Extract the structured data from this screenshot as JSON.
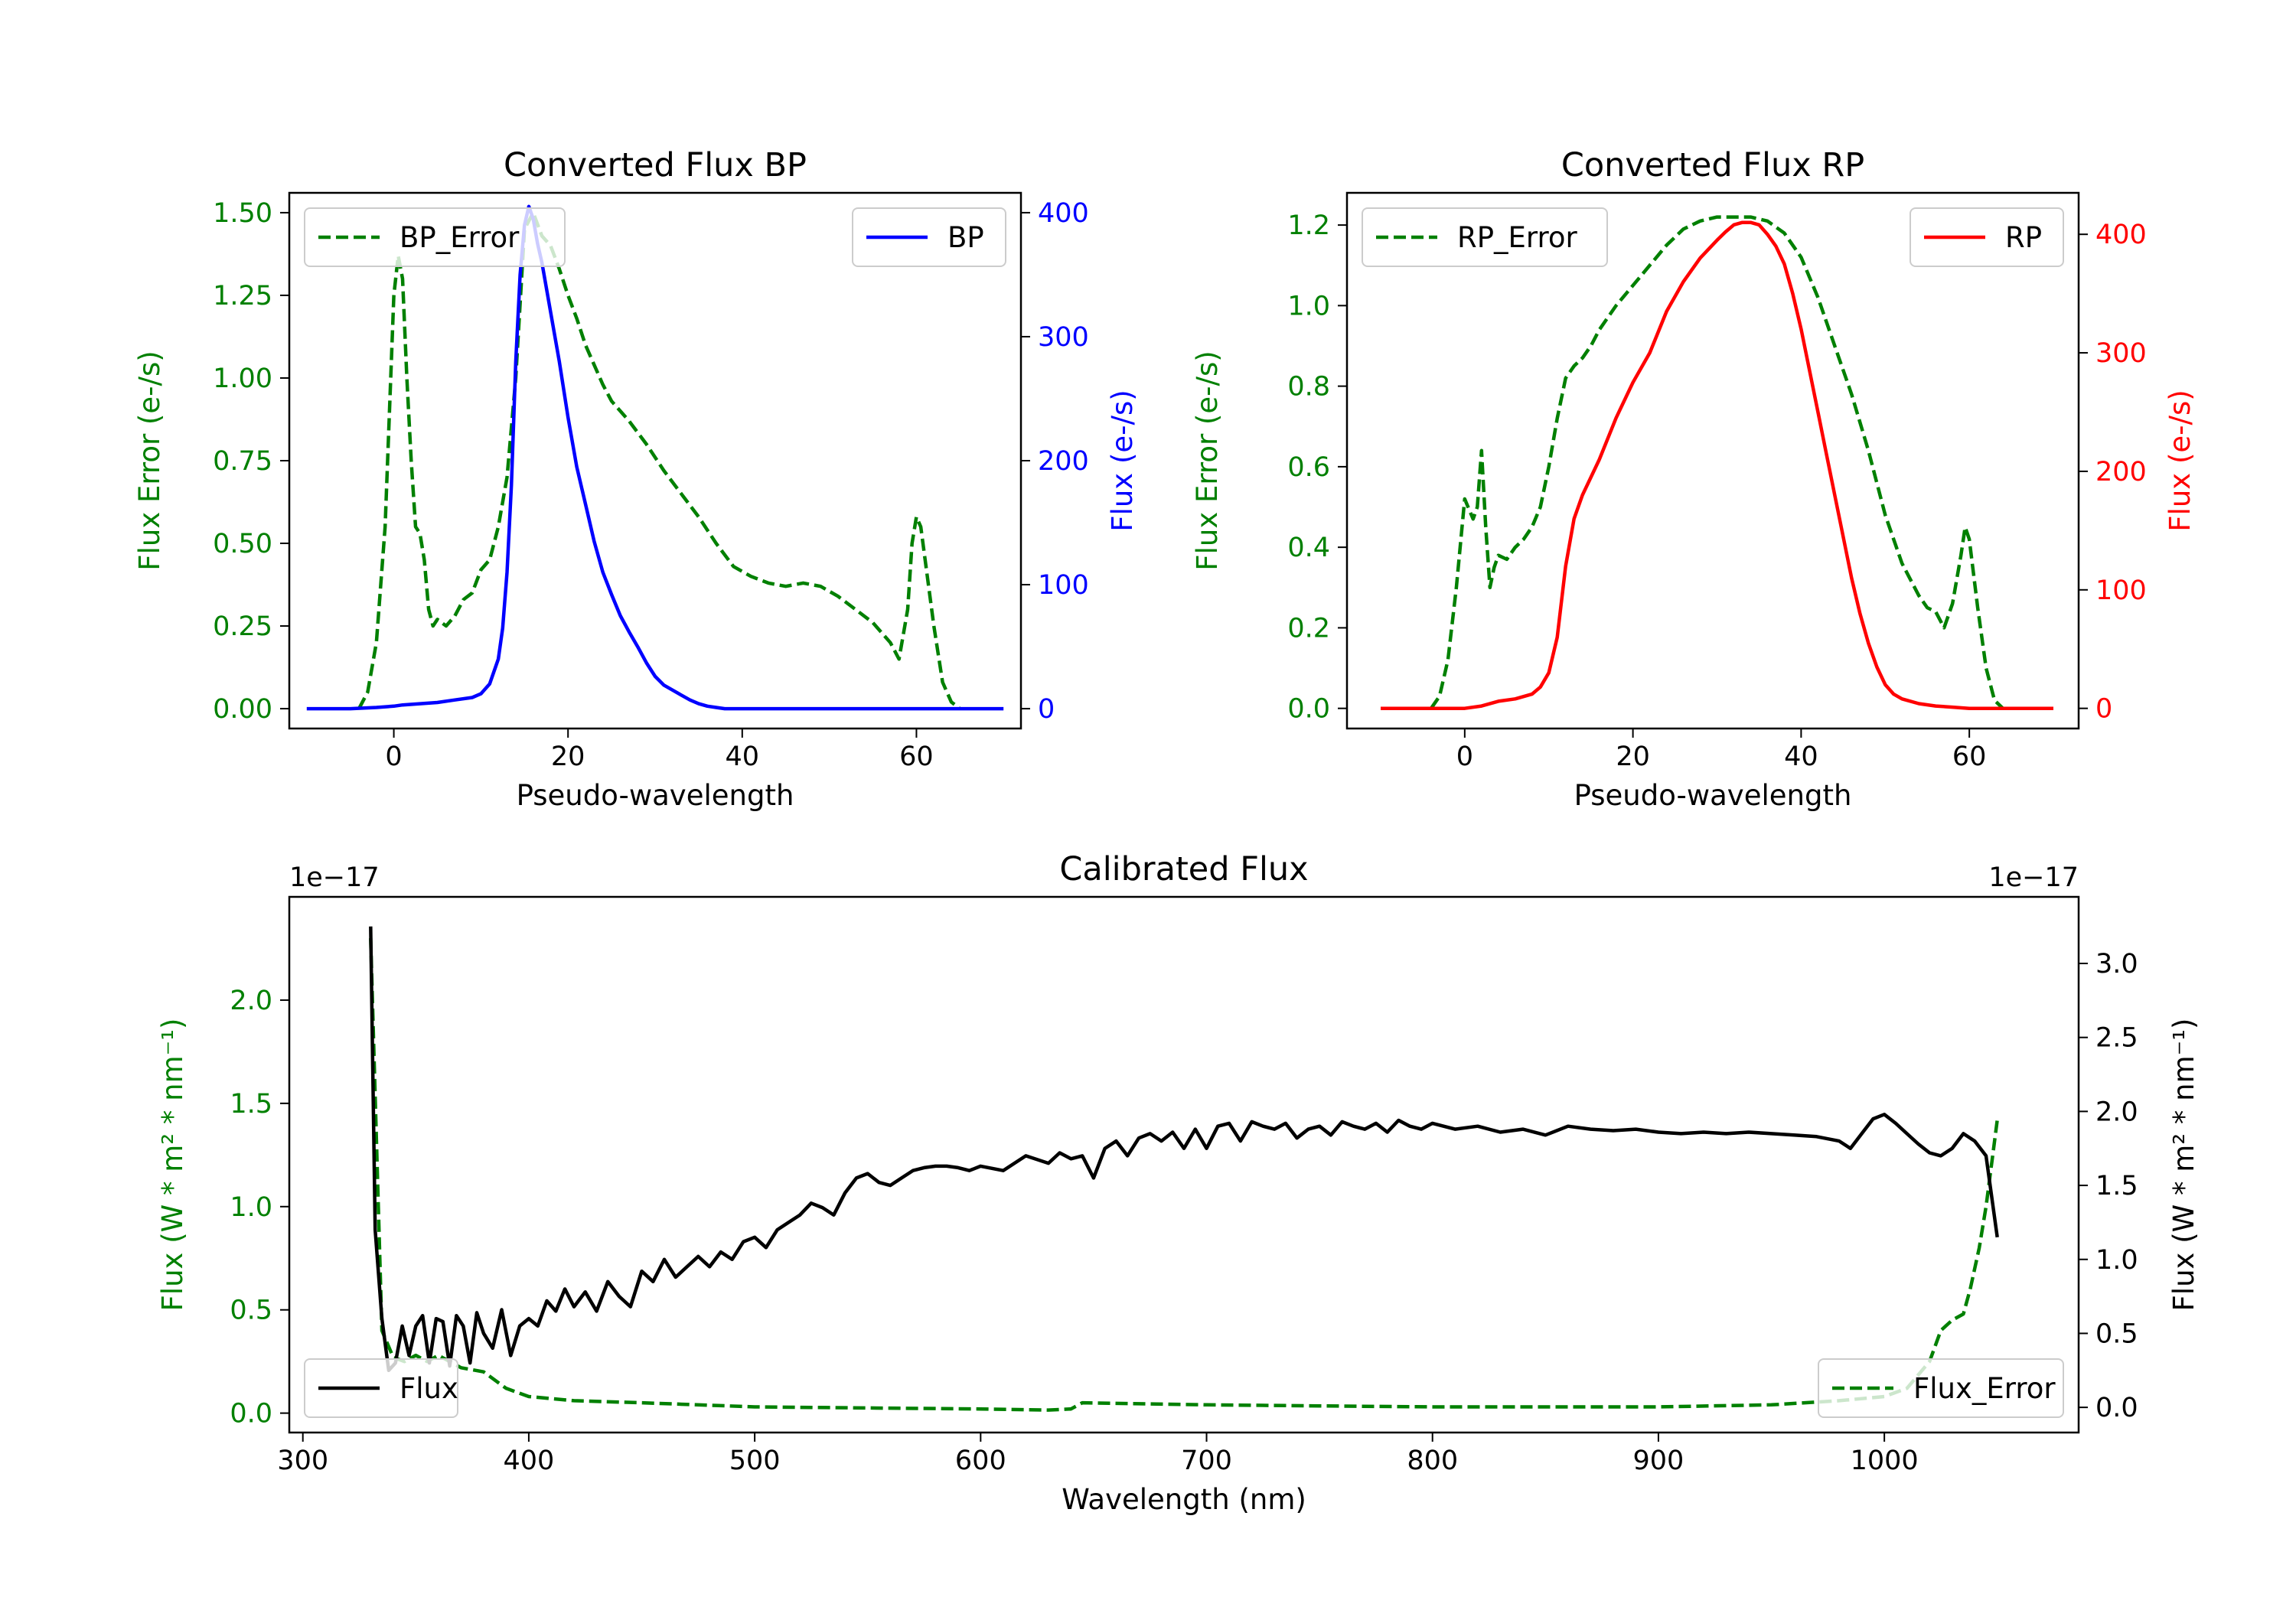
{
  "chart_data": [
    {
      "type": "line",
      "title": "Converted Flux BP",
      "xlabel": "Pseudo-wavelength",
      "ylabel_left": "Flux Error (e-/s)",
      "ylabel_right": "Flux (e-/s)",
      "xlim": [
        -12,
        72
      ],
      "ylim_left": [
        -0.06,
        1.56
      ],
      "ylim_right": [
        -16,
        416
      ],
      "xticks": [
        "0",
        "20",
        "40",
        "60"
      ],
      "yticks_left": [
        "0.00",
        "0.25",
        "0.50",
        "0.75",
        "1.00",
        "1.25",
        "1.50"
      ],
      "yticks_right": [
        "0",
        "100",
        "200",
        "300",
        "400"
      ],
      "legend_left": "BP_Error",
      "legend_right": "BP",
      "series": [
        {
          "name": "BP_Error",
          "axis": "left",
          "color": "#008000",
          "style": "dashed",
          "x": [
            -4,
            -3,
            -2,
            -1,
            0,
            0.5,
            1,
            1.5,
            2,
            2.5,
            3,
            3.5,
            4,
            4.5,
            5,
            6,
            7,
            8,
            9,
            10,
            11,
            12,
            13,
            14,
            15,
            16,
            17,
            18,
            19,
            20,
            21,
            22,
            23,
            24,
            25,
            27,
            29,
            31,
            33,
            35,
            37,
            39,
            41,
            43,
            45,
            47,
            49,
            51,
            53,
            55,
            56,
            57,
            58,
            59,
            59.5,
            60,
            60.5,
            61,
            62,
            63,
            64,
            65
          ],
          "y": [
            0.0,
            0.05,
            0.2,
            0.55,
            1.25,
            1.37,
            1.3,
            1.0,
            0.75,
            0.55,
            0.53,
            0.45,
            0.3,
            0.25,
            0.27,
            0.25,
            0.28,
            0.33,
            0.35,
            0.42,
            0.45,
            0.55,
            0.7,
            1.0,
            1.45,
            1.5,
            1.43,
            1.4,
            1.33,
            1.25,
            1.18,
            1.1,
            1.04,
            0.98,
            0.93,
            0.87,
            0.8,
            0.72,
            0.65,
            0.58,
            0.5,
            0.43,
            0.4,
            0.38,
            0.37,
            0.38,
            0.37,
            0.34,
            0.3,
            0.26,
            0.23,
            0.2,
            0.15,
            0.3,
            0.5,
            0.58,
            0.55,
            0.45,
            0.25,
            0.08,
            0.02,
            0.0
          ]
        },
        {
          "name": "BP",
          "axis": "right",
          "color": "#0000ff",
          "style": "solid",
          "x": [
            -10,
            -5,
            -2,
            0,
            1,
            3,
            5,
            7,
            9,
            10,
            11,
            12,
            12.5,
            13,
            13.5,
            14,
            14.5,
            15,
            15.5,
            16,
            16.5,
            17,
            18,
            19,
            20,
            21,
            22,
            23,
            24,
            25,
            26,
            27,
            28,
            29,
            30,
            31,
            32,
            33,
            34,
            35,
            36,
            37,
            38,
            40,
            42,
            45,
            50,
            55,
            60,
            65,
            70
          ],
          "y": [
            0,
            0,
            1,
            2,
            3,
            4,
            5,
            7,
            9,
            12,
            20,
            40,
            65,
            110,
            180,
            280,
            350,
            390,
            405,
            395,
            375,
            360,
            320,
            280,
            235,
            195,
            165,
            135,
            110,
            92,
            75,
            62,
            50,
            37,
            26,
            19,
            15,
            11,
            7,
            4,
            2,
            1,
            0,
            0,
            0,
            0,
            0,
            0,
            0,
            0,
            0
          ]
        }
      ]
    },
    {
      "type": "line",
      "title": "Converted Flux RP",
      "xlabel": "Pseudo-wavelength",
      "ylabel_left": "Flux Error (e-/s)",
      "ylabel_right": "Flux (e-/s)",
      "xlim": [
        -14,
        73
      ],
      "ylim_left": [
        -0.05,
        1.28
      ],
      "ylim_right": [
        -17,
        435
      ],
      "xticks": [
        "0",
        "20",
        "40",
        "60"
      ],
      "yticks_left": [
        "0.0",
        "0.2",
        "0.4",
        "0.6",
        "0.8",
        "1.0",
        "1.2"
      ],
      "yticks_right": [
        "0",
        "100",
        "200",
        "300",
        "400"
      ],
      "legend_left": "RP_Error",
      "legend_right": "RP",
      "series": [
        {
          "name": "RP_Error",
          "axis": "left",
          "color": "#008000",
          "style": "dashed",
          "x": [
            -4,
            -3,
            -2,
            -1,
            0,
            1,
            1.5,
            2,
            2.5,
            3,
            3.5,
            4,
            5,
            6,
            7,
            8,
            9,
            10,
            11,
            12,
            13,
            14,
            15,
            16,
            18,
            20,
            22,
            24,
            26,
            28,
            30,
            32,
            34,
            36,
            38,
            40,
            42,
            44,
            46,
            48,
            50,
            52,
            53,
            54,
            55,
            56,
            57,
            58,
            59,
            59.5,
            60,
            61,
            62,
            63,
            64
          ],
          "y": [
            0.0,
            0.03,
            0.12,
            0.3,
            0.52,
            0.47,
            0.5,
            0.64,
            0.45,
            0.3,
            0.35,
            0.38,
            0.37,
            0.4,
            0.42,
            0.45,
            0.5,
            0.6,
            0.72,
            0.82,
            0.85,
            0.87,
            0.9,
            0.94,
            1.0,
            1.05,
            1.1,
            1.15,
            1.19,
            1.21,
            1.22,
            1.22,
            1.22,
            1.21,
            1.18,
            1.12,
            1.02,
            0.9,
            0.78,
            0.64,
            0.48,
            0.36,
            0.32,
            0.28,
            0.25,
            0.24,
            0.2,
            0.26,
            0.38,
            0.45,
            0.42,
            0.25,
            0.1,
            0.02,
            0.0
          ]
        },
        {
          "name": "RP",
          "axis": "right",
          "color": "#ff0000",
          "style": "solid",
          "x": [
            -10,
            -5,
            0,
            2,
            4,
            6,
            8,
            9,
            10,
            11,
            12,
            13,
            14,
            16,
            18,
            20,
            22,
            24,
            26,
            28,
            30,
            31,
            32,
            33,
            34,
            35,
            36,
            37,
            38,
            39,
            40,
            41,
            42,
            43,
            44,
            45,
            46,
            47,
            48,
            49,
            50,
            51,
            52,
            54,
            56,
            58,
            60,
            62,
            65,
            70
          ],
          "y": [
            0,
            0,
            0,
            2,
            6,
            8,
            12,
            18,
            30,
            60,
            120,
            160,
            180,
            210,
            245,
            275,
            300,
            335,
            360,
            380,
            395,
            402,
            408,
            410,
            410,
            408,
            400,
            390,
            375,
            350,
            320,
            285,
            250,
            215,
            180,
            145,
            110,
            80,
            55,
            35,
            20,
            12,
            8,
            4,
            2,
            1,
            0,
            0,
            0,
            0
          ]
        }
      ]
    },
    {
      "type": "line",
      "title": "Calibrated Flux",
      "xlabel": "Wavelength (nm)",
      "ylabel_left": "Flux (W * m² * nm⁻¹)",
      "ylabel_right": "Flux (W * m² * nm⁻¹)",
      "offset_left": "1e−17",
      "offset_right": "1e−17",
      "xlim": [
        294,
        1086
      ],
      "ylim_left": [
        -0.094,
        2.5
      ],
      "ylim_right": [
        -0.17,
        3.45
      ],
      "xticks": [
        "300",
        "400",
        "500",
        "600",
        "700",
        "800",
        "900",
        "1000"
      ],
      "yticks_left": [
        "0.0",
        "0.5",
        "1.0",
        "1.5",
        "2.0"
      ],
      "yticks_right": [
        "0.0",
        "0.5",
        "1.0",
        "1.5",
        "2.0",
        "2.5",
        "3.0"
      ],
      "legend_left": "Flux",
      "legend_right": "Flux_Error",
      "series": [
        {
          "name": "Flux_Error",
          "axis": "left",
          "color": "#008000",
          "style": "dashed",
          "x": [
            330,
            335,
            340,
            345,
            350,
            355,
            360,
            370,
            380,
            390,
            400,
            420,
            450,
            500,
            550,
            600,
            630,
            640,
            645,
            700,
            750,
            800,
            850,
            900,
            950,
            980,
            1000,
            1010,
            1020,
            1025,
            1030,
            1035,
            1038,
            1042,
            1045,
            1048,
            1050
          ],
          "y": [
            2.3,
            0.4,
            0.27,
            0.25,
            0.28,
            0.25,
            0.28,
            0.22,
            0.2,
            0.12,
            0.08,
            0.06,
            0.05,
            0.03,
            0.025,
            0.02,
            0.015,
            0.02,
            0.05,
            0.04,
            0.035,
            0.03,
            0.03,
            0.03,
            0.04,
            0.06,
            0.08,
            0.12,
            0.25,
            0.4,
            0.45,
            0.48,
            0.6,
            0.8,
            1.0,
            1.25,
            1.42
          ]
        },
        {
          "name": "Flux",
          "axis": "right",
          "color": "#000000",
          "style": "solid",
          "x": [
            330,
            332,
            335,
            338,
            341,
            344,
            347,
            350,
            353,
            356,
            359,
            362,
            365,
            368,
            371,
            374,
            377,
            380,
            384,
            388,
            392,
            396,
            400,
            404,
            408,
            412,
            416,
            420,
            425,
            430,
            435,
            440,
            445,
            450,
            455,
            460,
            465,
            470,
            475,
            480,
            485,
            490,
            495,
            500,
            505,
            510,
            515,
            520,
            525,
            530,
            535,
            540,
            545,
            550,
            555,
            560,
            565,
            570,
            575,
            580,
            585,
            590,
            595,
            600,
            610,
            620,
            630,
            635,
            640,
            645,
            650,
            655,
            660,
            665,
            670,
            675,
            680,
            685,
            690,
            695,
            700,
            705,
            710,
            715,
            720,
            725,
            730,
            735,
            740,
            745,
            750,
            755,
            760,
            765,
            770,
            775,
            780,
            785,
            790,
            795,
            800,
            810,
            820,
            830,
            840,
            850,
            860,
            870,
            880,
            890,
            900,
            910,
            920,
            930,
            940,
            950,
            960,
            970,
            980,
            985,
            990,
            995,
            1000,
            1005,
            1010,
            1015,
            1020,
            1025,
            1030,
            1035,
            1040,
            1045,
            1050
          ],
          "y": [
            3.25,
            1.2,
            0.6,
            0.25,
            0.3,
            0.55,
            0.35,
            0.55,
            0.62,
            0.3,
            0.6,
            0.58,
            0.28,
            0.62,
            0.55,
            0.3,
            0.64,
            0.5,
            0.4,
            0.66,
            0.35,
            0.55,
            0.6,
            0.55,
            0.72,
            0.65,
            0.8,
            0.68,
            0.78,
            0.65,
            0.85,
            0.75,
            0.68,
            0.92,
            0.85,
            1.0,
            0.88,
            0.95,
            1.02,
            0.95,
            1.05,
            1.0,
            1.12,
            1.15,
            1.08,
            1.2,
            1.25,
            1.3,
            1.38,
            1.35,
            1.3,
            1.45,
            1.55,
            1.58,
            1.52,
            1.5,
            1.55,
            1.6,
            1.62,
            1.63,
            1.63,
            1.62,
            1.6,
            1.63,
            1.6,
            1.7,
            1.65,
            1.72,
            1.68,
            1.7,
            1.55,
            1.75,
            1.8,
            1.7,
            1.82,
            1.85,
            1.8,
            1.86,
            1.75,
            1.88,
            1.75,
            1.9,
            1.92,
            1.8,
            1.93,
            1.9,
            1.88,
            1.92,
            1.82,
            1.88,
            1.9,
            1.84,
            1.93,
            1.9,
            1.88,
            1.92,
            1.86,
            1.94,
            1.9,
            1.88,
            1.92,
            1.88,
            1.9,
            1.86,
            1.88,
            1.84,
            1.9,
            1.88,
            1.87,
            1.88,
            1.86,
            1.85,
            1.86,
            1.85,
            1.86,
            1.85,
            1.84,
            1.83,
            1.8,
            1.75,
            1.85,
            1.95,
            1.98,
            1.92,
            1.85,
            1.78,
            1.72,
            1.7,
            1.75,
            1.85,
            1.8,
            1.7,
            1.15
          ]
        }
      ]
    }
  ]
}
